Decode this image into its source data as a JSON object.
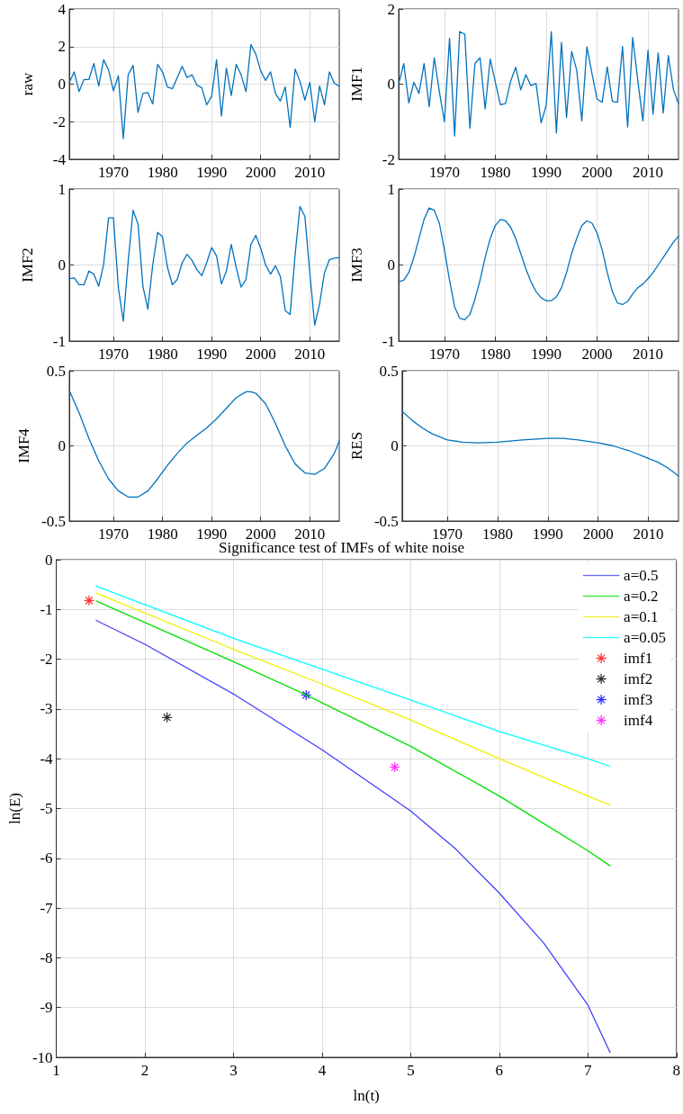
{
  "chart_data": [
    {
      "type": "line",
      "ylabel": "raw",
      "x": [
        1961,
        1962,
        1963,
        1964,
        1965,
        1966,
        1967,
        1968,
        1969,
        1970,
        1971,
        1972,
        1973,
        1974,
        1975,
        1976,
        1977,
        1978,
        1979,
        1980,
        1981,
        1982,
        1983,
        1984,
        1985,
        1986,
        1987,
        1988,
        1989,
        1990,
        1991,
        1992,
        1993,
        1994,
        1995,
        1996,
        1997,
        1998,
        1999,
        2000,
        2001,
        2002,
        2003,
        2004,
        2005,
        2006,
        2007,
        2008,
        2009,
        2010,
        2011,
        2012,
        2013,
        2014,
        2015,
        2016
      ],
      "series": [
        {
          "color": "#0072bd",
          "values": [
            0.1,
            0.65,
            -0.4,
            0.25,
            0.25,
            1.1,
            -0.1,
            1.3,
            0.75,
            -0.35,
            0.45,
            -2.9,
            0.5,
            1.0,
            -1.5,
            -0.5,
            -0.45,
            -1.05,
            1.05,
            0.65,
            -0.15,
            -0.25,
            0.35,
            0.95,
            0.35,
            0.5,
            -0.05,
            -0.2,
            -1.1,
            -0.65,
            1.3,
            -1.7,
            0.85,
            -0.6,
            1.05,
            0.5,
            -0.4,
            2.1,
            1.6,
            0.7,
            0.2,
            0.65,
            -0.5,
            -0.9,
            -0.15,
            -2.3,
            0.8,
            0.15,
            -0.85,
            0.1,
            -2.0,
            -0.1,
            -1.1,
            0.65,
            0.05,
            -0.1
          ]
        }
      ],
      "xlim": [
        1961,
        2016
      ],
      "xticks": [
        1970,
        1980,
        1990,
        2000,
        2010
      ],
      "ylim": [
        -4,
        4
      ],
      "yticks": [
        -4,
        -2,
        0,
        2,
        4
      ],
      "grid": true,
      "line_style": "solid"
    },
    {
      "type": "line",
      "ylabel": "IMF1",
      "x": [
        1961,
        1962,
        1963,
        1964,
        1965,
        1966,
        1967,
        1968,
        1969,
        1970,
        1971,
        1972,
        1973,
        1974,
        1975,
        1976,
        1977,
        1978,
        1979,
        1980,
        1981,
        1982,
        1983,
        1984,
        1985,
        1986,
        1987,
        1988,
        1989,
        1990,
        1991,
        1992,
        1993,
        1994,
        1995,
        1996,
        1997,
        1998,
        1999,
        2000,
        2001,
        2002,
        2003,
        2004,
        2005,
        2006,
        2007,
        2008,
        2009,
        2010,
        2011,
        2012,
        2013,
        2014,
        2015,
        2016
      ],
      "series": [
        {
          "color": "#0072bd",
          "values": [
            0,
            0.55,
            -0.5,
            0.05,
            -0.25,
            0.55,
            -0.6,
            0.7,
            -0.2,
            -1.0,
            1.22,
            -1.38,
            1.4,
            1.33,
            -1.17,
            0.55,
            0.7,
            -0.66,
            0.67,
            0.05,
            -0.55,
            -0.52,
            0.07,
            0.45,
            -0.15,
            0.25,
            -0.04,
            0.02,
            -1.03,
            -0.57,
            1.4,
            -1.3,
            1.11,
            -0.89,
            0.87,
            0.37,
            -0.98,
            0.99,
            0.28,
            -0.4,
            -0.48,
            0.46,
            -0.46,
            -0.48,
            1.0,
            -1.14,
            1.24,
            0.1,
            -0.98,
            0.9,
            -0.8,
            0.83,
            -0.77,
            0.76,
            -0.14,
            -0.52
          ]
        }
      ],
      "xlim": [
        1961,
        2016
      ],
      "xticks": [
        1970,
        1980,
        1990,
        2000,
        2010
      ],
      "ylim": [
        -2,
        2
      ],
      "yticks": [
        -2,
        0,
        2
      ],
      "grid": true,
      "line_style": "solid"
    },
    {
      "type": "line",
      "ylabel": "IMF2",
      "x": [
        1961,
        1962,
        1963,
        1964,
        1965,
        1966,
        1967,
        1968,
        1969,
        1970,
        1971,
        1972,
        1973,
        1974,
        1975,
        1976,
        1977,
        1978,
        1979,
        1980,
        1981,
        1982,
        1983,
        1984,
        1985,
        1986,
        1987,
        1988,
        1989,
        1990,
        1991,
        1992,
        1993,
        1994,
        1995,
        1996,
        1997,
        1998,
        1999,
        2000,
        2001,
        2002,
        2003,
        2004,
        2005,
        2006,
        2007,
        2008,
        2009,
        2010,
        2011,
        2012,
        2013,
        2014,
        2015,
        2016
      ],
      "series": [
        {
          "color": "#0072bd",
          "values": [
            -0.18,
            -0.17,
            -0.26,
            -0.26,
            -0.08,
            -0.12,
            -0.28,
            0.01,
            0.62,
            0.62,
            -0.3,
            -0.74,
            0.05,
            0.72,
            0.54,
            -0.28,
            -0.58,
            0.0,
            0.43,
            0.37,
            -0.03,
            -0.26,
            -0.19,
            0.03,
            0.14,
            0.06,
            -0.06,
            -0.14,
            0.03,
            0.23,
            0.12,
            -0.25,
            -0.08,
            0.27,
            -0.03,
            -0.29,
            -0.19,
            0.27,
            0.39,
            0.22,
            0.0,
            -0.12,
            -0.01,
            -0.15,
            -0.6,
            -0.65,
            0.13,
            0.77,
            0.64,
            -0.1,
            -0.79,
            -0.51,
            -0.1,
            0.07,
            0.09,
            0.1
          ]
        }
      ],
      "xlim": [
        1961,
        2016
      ],
      "xticks": [
        1970,
        1980,
        1990,
        2000,
        2010
      ],
      "ylim": [
        -1,
        1
      ],
      "yticks": [
        -1,
        0,
        1
      ],
      "grid": true,
      "line_style": "solid"
    },
    {
      "type": "line",
      "ylabel": "IMF3",
      "x": [
        1961,
        1962,
        1963,
        1964,
        1965,
        1966,
        1967,
        1968,
        1969,
        1970,
        1971,
        1972,
        1973,
        1974,
        1975,
        1976,
        1977,
        1978,
        1979,
        1980,
        1981,
        1982,
        1983,
        1984,
        1985,
        1986,
        1987,
        1988,
        1989,
        1990,
        1991,
        1992,
        1993,
        1994,
        1995,
        1996,
        1997,
        1998,
        1999,
        2000,
        2001,
        2002,
        2003,
        2004,
        2005,
        2006,
        2007,
        2008,
        2009,
        2010,
        2011,
        2012,
        2013,
        2014,
        2015,
        2016
      ],
      "series": [
        {
          "color": "#0072bd",
          "values": [
            -0.22,
            -0.2,
            -0.1,
            0.1,
            0.35,
            0.6,
            0.75,
            0.72,
            0.55,
            0.2,
            -0.2,
            -0.55,
            -0.7,
            -0.72,
            -0.65,
            -0.45,
            -0.2,
            0.1,
            0.35,
            0.52,
            0.6,
            0.58,
            0.5,
            0.35,
            0.15,
            -0.05,
            -0.22,
            -0.35,
            -0.43,
            -0.47,
            -0.47,
            -0.42,
            -0.3,
            -0.1,
            0.15,
            0.35,
            0.52,
            0.58,
            0.55,
            0.42,
            0.2,
            -0.1,
            -0.35,
            -0.5,
            -0.52,
            -0.48,
            -0.38,
            -0.3,
            -0.25,
            -0.18,
            -0.1,
            0.0,
            0.1,
            0.2,
            0.3,
            0.38
          ]
        }
      ],
      "xlim": [
        1961,
        2016
      ],
      "xticks": [
        1970,
        1980,
        1990,
        2000,
        2010
      ],
      "ylim": [
        -1,
        1
      ],
      "yticks": [
        -1,
        0,
        1
      ],
      "grid": true,
      "line_style": "solid"
    },
    {
      "type": "line",
      "ylabel": "IMF4",
      "x": [
        1961,
        1963,
        1965,
        1967,
        1969,
        1971,
        1973,
        1975,
        1977,
        1979,
        1981,
        1983,
        1985,
        1987,
        1989,
        1991,
        1993,
        1995,
        1997,
        1998,
        1999,
        2001,
        2003,
        2005,
        2007,
        2009,
        2011,
        2013,
        2015,
        2016
      ],
      "series": [
        {
          "color": "#0072bd",
          "values": [
            0.37,
            0.22,
            0.05,
            -0.1,
            -0.22,
            -0.3,
            -0.34,
            -0.34,
            -0.3,
            -0.22,
            -0.13,
            -0.05,
            0.02,
            0.07,
            0.12,
            0.18,
            0.25,
            0.32,
            0.36,
            0.36,
            0.35,
            0.28,
            0.15,
            0.0,
            -0.12,
            -0.18,
            -0.19,
            -0.15,
            -0.05,
            0.03
          ]
        }
      ],
      "xlim": [
        1961,
        2016
      ],
      "xticks": [
        1970,
        1980,
        1990,
        2000,
        2010
      ],
      "ylim": [
        -0.5,
        0.5
      ],
      "yticks": [
        -0.5,
        0,
        0.5
      ],
      "grid": true,
      "line_style": "solid"
    },
    {
      "type": "line",
      "ylabel": "RES",
      "x": [
        1961,
        1963,
        1965,
        1967,
        1970,
        1973,
        1976,
        1980,
        1985,
        1990,
        1993,
        1996,
        2000,
        2003,
        2006,
        2009,
        2012,
        2014,
        2016
      ],
      "series": [
        {
          "color": "#0072bd",
          "values": [
            0.23,
            0.17,
            0.12,
            0.08,
            0.04,
            0.025,
            0.02,
            0.025,
            0.04,
            0.05,
            0.05,
            0.04,
            0.02,
            0.0,
            -0.03,
            -0.07,
            -0.11,
            -0.15,
            -0.2
          ]
        }
      ],
      "xlim": [
        1961,
        2016
      ],
      "xticks": [
        1970,
        1980,
        1990,
        2000,
        2010
      ],
      "ylim": [
        -0.5,
        0.5
      ],
      "yticks": [
        -0.5,
        0,
        0.5
      ],
      "grid": true,
      "line_style": "solid"
    },
    {
      "type": "line",
      "title": "Significance test of IMFs of white noise",
      "xlabel": "ln(t)",
      "ylabel": "ln(E)",
      "series": [
        {
          "name": "a=0.5",
          "color": "#4040ff",
          "x": [
            1.45,
            2,
            3,
            4,
            5,
            5.5,
            6,
            6.5,
            7,
            7.25
          ],
          "values": [
            -1.22,
            -1.7,
            -2.7,
            -3.82,
            -5.05,
            -5.8,
            -6.7,
            -7.7,
            -8.95,
            -9.9
          ]
        },
        {
          "name": "a=0.2",
          "color": "#00e000",
          "x": [
            1.45,
            3,
            3.8,
            5,
            6,
            6.5,
            7,
            7.25
          ],
          "values": [
            -0.83,
            -2.05,
            -2.7,
            -3.75,
            -4.75,
            -5.3,
            -5.85,
            -6.15
          ]
        },
        {
          "name": "a=0.1",
          "color": "#f0f000",
          "x": [
            1.45,
            3,
            4,
            5,
            6,
            7,
            7.25
          ],
          "values": [
            -0.67,
            -1.8,
            -2.5,
            -3.22,
            -4.0,
            -4.75,
            -4.93
          ]
        },
        {
          "name": "a=0.05",
          "color": "#00ffff",
          "x": [
            1.45,
            3,
            4,
            5,
            6,
            7,
            7.25
          ],
          "values": [
            -0.53,
            -1.58,
            -2.2,
            -2.82,
            -3.45,
            -4.0,
            -4.15
          ]
        },
        {
          "name": "imf1",
          "type": "scatter",
          "marker": "cross",
          "color": "#ff0000",
          "x": [
            1.37
          ],
          "values": [
            -0.82
          ]
        },
        {
          "name": "imf2",
          "type": "scatter",
          "marker": "cross",
          "color": "#000000",
          "x": [
            2.25
          ],
          "values": [
            -3.17
          ]
        },
        {
          "name": "imf3",
          "type": "scatter",
          "marker": "cross",
          "color": "#0000ff",
          "x": [
            3.82
          ],
          "values": [
            -2.72
          ]
        },
        {
          "name": "imf4",
          "type": "scatter",
          "marker": "cross",
          "color": "#ff00ff",
          "x": [
            4.82
          ],
          "values": [
            -4.17
          ]
        }
      ],
      "xlim": [
        1,
        8
      ],
      "xticks": [
        1,
        2,
        3,
        4,
        5,
        6,
        7,
        8
      ],
      "ylim": [
        -10,
        0
      ],
      "yticks": [
        -10,
        -9,
        -8,
        -7,
        -6,
        -5,
        -4,
        -3,
        -2,
        -1,
        0
      ],
      "grid": true,
      "legend": "top right",
      "line_style": "solid"
    }
  ]
}
